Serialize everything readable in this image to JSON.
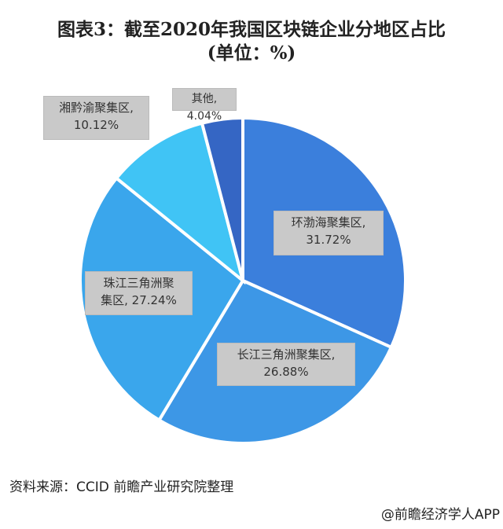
{
  "chart_data": {
    "type": "pie",
    "title": "图表3：截至2020年我国区块链企业分地区占比",
    "subtitle": "(单位：%)",
    "slices": [
      {
        "label": "环渤海聚集区",
        "value": 31.72,
        "display": "环渤海聚集区,",
        "pct": "31.72%",
        "color": "#3b7fdc"
      },
      {
        "label": "长江三角洲聚集区",
        "value": 26.88,
        "display": "长江三角洲聚集区,",
        "pct": "26.88%",
        "color": "#3d97e6"
      },
      {
        "label": "珠江三角洲聚集区",
        "value": 27.24,
        "display": "珠江三角洲聚",
        "pct": "集区, 27.24%",
        "color": "#3aa6ec"
      },
      {
        "label": "湘黔渝聚集区",
        "value": 10.12,
        "display": "湘黔渝聚集区,",
        "pct": "10.12%",
        "color": "#40c4f5"
      },
      {
        "label": "其他",
        "value": 4.04,
        "display": "其他, 4.04%",
        "pct": "",
        "color": "#3566c4"
      }
    ],
    "start_angle": "12 o'clock",
    "direction": "clockwise"
  },
  "source": "资料来源：CCID 前瞻产业研究院整理",
  "footer": "@前瞻经济学人APP"
}
